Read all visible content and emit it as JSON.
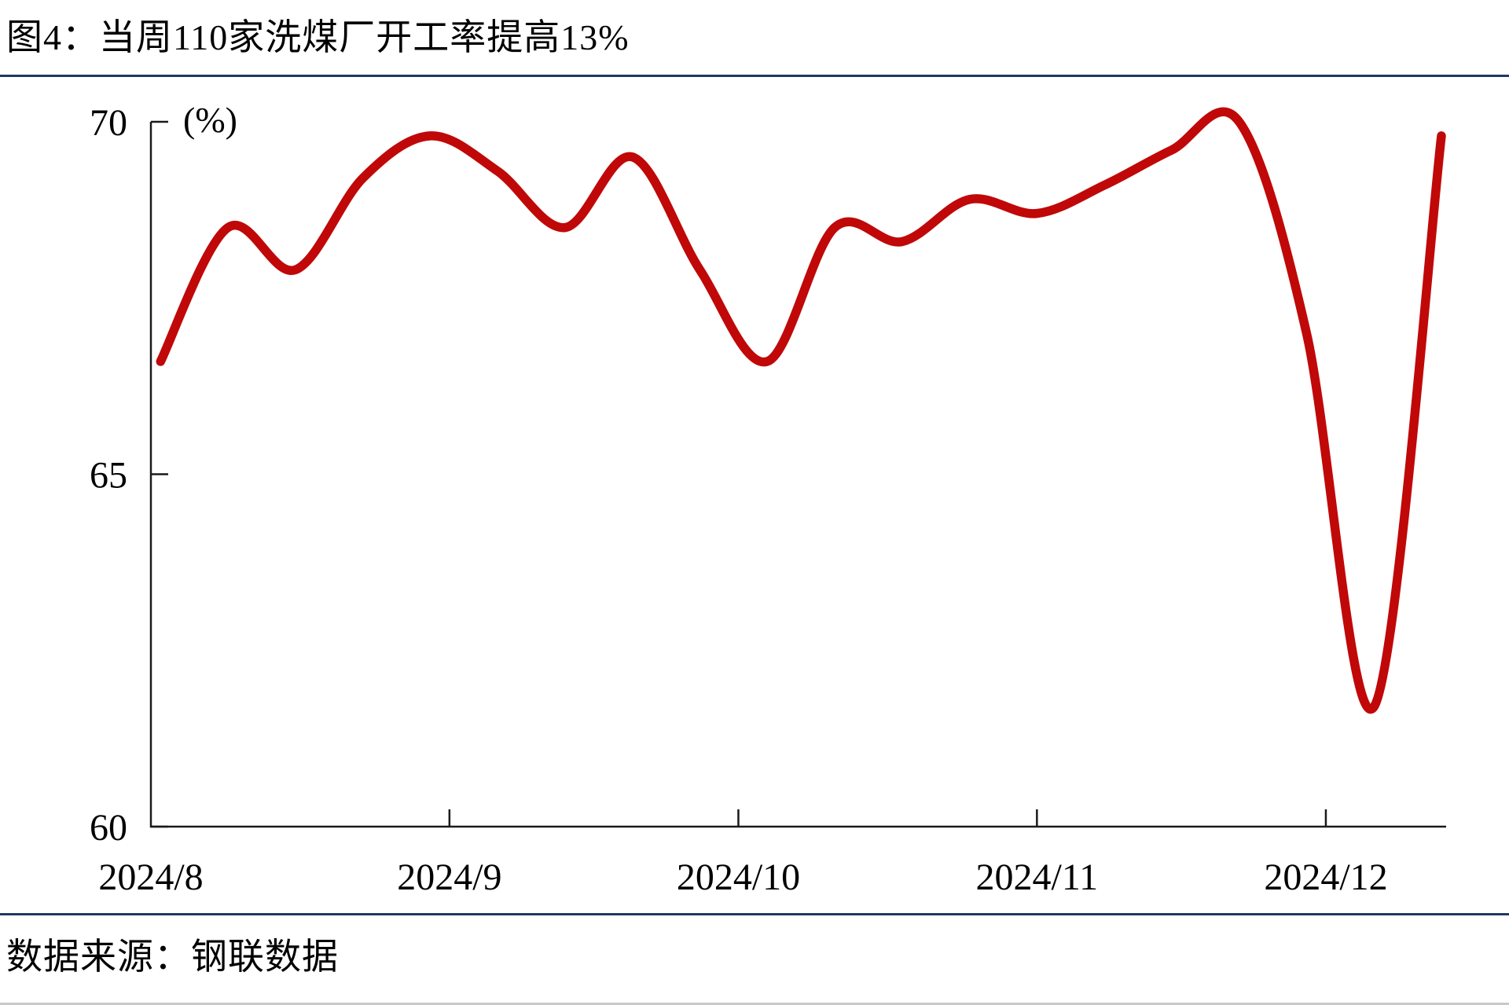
{
  "title": "图4：当周110家洗煤厂开工率提高13%",
  "source": "数据来源：钢联数据",
  "colors": {
    "line": "#C00808",
    "separator": "#1F3864",
    "axis": "#1A1A1A",
    "text": "#000000"
  },
  "chart_data": {
    "type": "line",
    "title": "图4：当周110家洗煤厂开工率提高13%",
    "unit_label": "(%)",
    "x": [
      "2024/8/2",
      "2024/8/9",
      "2024/8/16",
      "2024/8/23",
      "2024/8/30",
      "2024/9/6",
      "2024/9/13",
      "2024/9/20",
      "2024/9/27",
      "2024/10/4",
      "2024/10/11",
      "2024/10/18",
      "2024/10/25",
      "2024/11/1",
      "2024/11/8",
      "2024/11/15",
      "2024/11/22",
      "2024/11/29",
      "2024/12/6",
      "2024/12/13"
    ],
    "values": [
      66.6,
      68.5,
      67.9,
      69.2,
      69.8,
      69.3,
      68.5,
      69.5,
      67.9,
      66.6,
      68.5,
      68.3,
      68.9,
      68.7,
      69.1,
      69.6,
      70.0,
      67.0,
      61.7,
      69.8
    ],
    "x_tick_labels": [
      "2024/8",
      "2024/9",
      "2024/10",
      "2024/11",
      "2024/12"
    ],
    "x_tick_dates": [
      "2024/8/1",
      "2024/9/1",
      "2024/10/1",
      "2024/11/1",
      "2024/12/1"
    ],
    "x_range": [
      "2024/8/1",
      "2024/12/13"
    ],
    "ylim": [
      60,
      70
    ],
    "y_ticks": [
      70,
      65,
      60
    ],
    "y_tick_labels": [
      "70",
      "65",
      "60"
    ],
    "grid": false,
    "legend_position": "none"
  }
}
